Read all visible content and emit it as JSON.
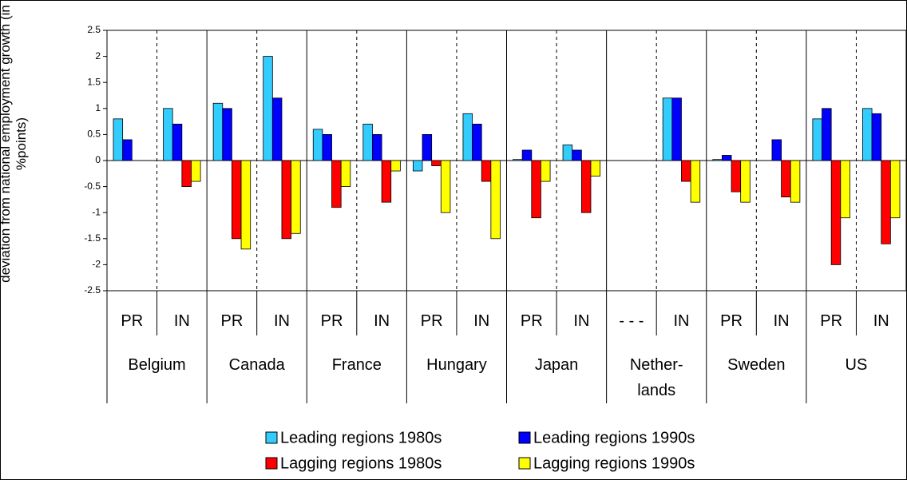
{
  "chart_data": {
    "type": "bar",
    "ylabel": "deviation from national employment growth (in %points)",
    "categories": [
      "PR",
      "IN",
      "PR",
      "IN",
      "PR",
      "IN",
      "PR",
      "IN",
      "PR",
      "IN",
      "- - -",
      "IN",
      "PR",
      "IN",
      "PR",
      "IN"
    ],
    "groups": [
      "Belgium",
      "Canada",
      "France",
      "Hungary",
      "Japan",
      "Nether-\nlands",
      "Sweden",
      "US"
    ],
    "series": [
      {
        "name": "Leading regions 1980s",
        "color": "#33ccff",
        "values": [
          0.8,
          1.0,
          1.1,
          2.0,
          0.6,
          0.7,
          -0.2,
          0.9,
          0.02,
          0.3,
          null,
          1.2,
          0.02,
          null,
          0.8,
          1.0
        ]
      },
      {
        "name": "Leading regions 1990s",
        "color": "#0000ff",
        "values": [
          0.4,
          0.7,
          1.0,
          1.2,
          0.5,
          0.5,
          0.5,
          0.7,
          0.2,
          0.2,
          null,
          1.2,
          0.1,
          0.4,
          1.0,
          0.9
        ]
      },
      {
        "name": "Lagging regions 1980s",
        "color": "#ff0000",
        "values": [
          null,
          -0.5,
          -1.5,
          -1.5,
          -0.9,
          -0.8,
          -0.1,
          -0.4,
          -1.1,
          -1.0,
          null,
          -0.4,
          -0.6,
          -0.7,
          -2.0,
          -1.6
        ]
      },
      {
        "name": "Lagging regions 1990s",
        "color": "#ffff00",
        "values": [
          null,
          -0.4,
          -1.7,
          -1.4,
          -0.5,
          -0.2,
          -1.0,
          -1.5,
          -0.4,
          -0.3,
          null,
          -0.8,
          -0.8,
          -0.8,
          -1.1,
          -1.1
        ]
      }
    ],
    "ylim": [
      -2.5,
      2.5
    ],
    "yticks": [
      2.5,
      2,
      1.5,
      1,
      0.5,
      0,
      -0.5,
      -1,
      -1.5,
      -2,
      -2.5
    ]
  }
}
